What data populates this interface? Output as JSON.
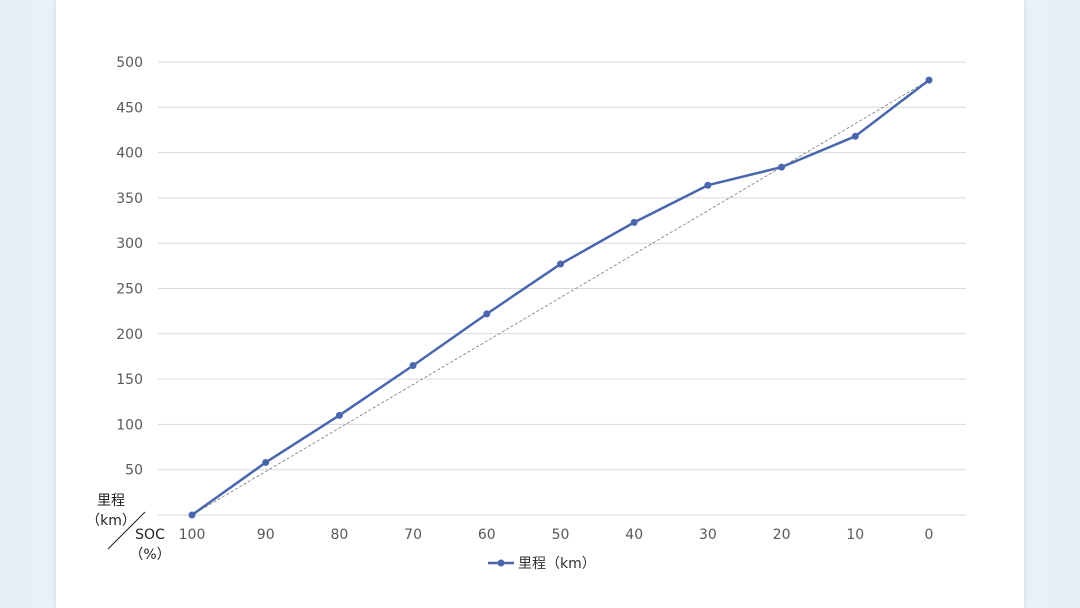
{
  "chart_data": {
    "type": "line",
    "x": [
      "100",
      "90",
      "80",
      "70",
      "60",
      "50",
      "40",
      "30",
      "20",
      "10",
      "0"
    ],
    "series": [
      {
        "name": "里程（km）",
        "values": [
          0,
          58,
          110,
          165,
          222,
          277,
          323,
          364,
          384,
          418,
          480
        ],
        "color": "#4a67ad"
      }
    ],
    "reference_line": {
      "from": [
        100,
        0
      ],
      "to": [
        0,
        480
      ],
      "style": "dashed",
      "color": "#777777"
    },
    "y_ticks": [
      50,
      100,
      150,
      200,
      250,
      300,
      350,
      400,
      450,
      500
    ],
    "ylim": [
      0,
      500
    ],
    "corner_label": {
      "y_axis": [
        "里程",
        "（km）"
      ],
      "x_axis": [
        "SOC",
        "（%）"
      ]
    },
    "legend": {
      "label": "里程（km）",
      "position": "bottom"
    },
    "grid": true
  }
}
